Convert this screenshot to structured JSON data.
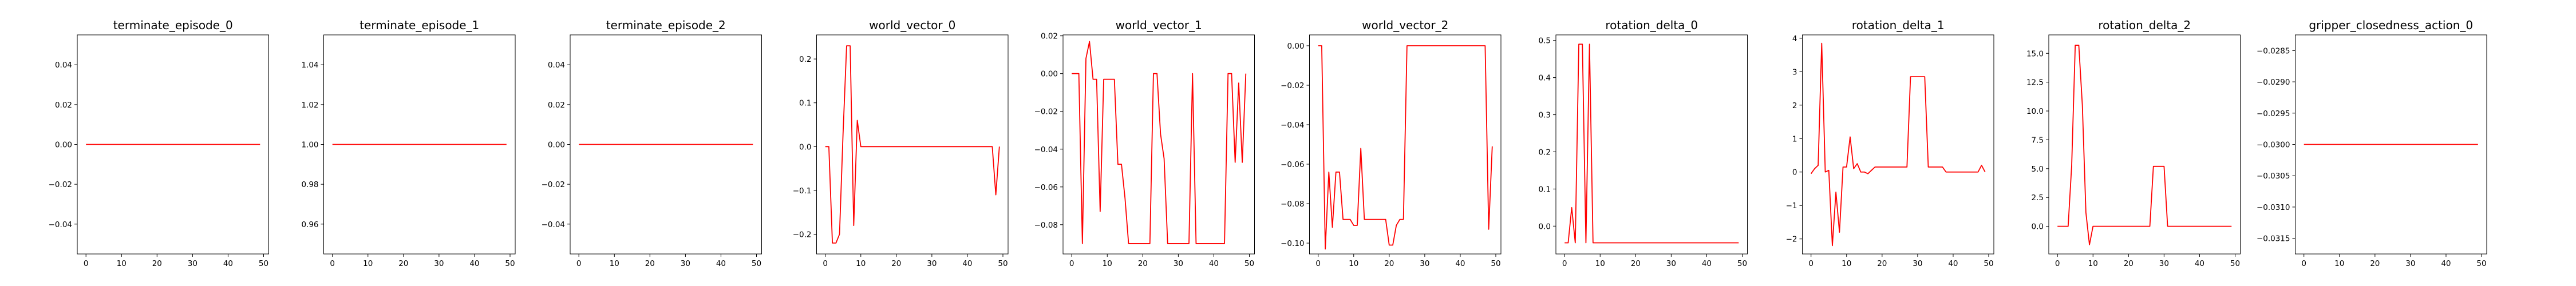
{
  "line_color": "#ff0000",
  "chart_data": [
    {
      "type": "line",
      "title": "terminate_episode_0",
      "xlim": [
        -2.45,
        51.45
      ],
      "ylim": [
        -0.055,
        0.055
      ],
      "xticks": [
        0,
        10,
        20,
        30,
        40,
        50
      ],
      "yticks": [
        -0.04,
        -0.02,
        0.0,
        0.02,
        0.04
      ],
      "ytick_labels": [
        "−0.04",
        "−0.02",
        "0.00",
        "0.02",
        "0.04"
      ],
      "x": [
        0,
        49
      ],
      "y": [
        0,
        0
      ]
    },
    {
      "type": "line",
      "title": "terminate_episode_1",
      "xlim": [
        -2.45,
        51.45
      ],
      "ylim": [
        0.945,
        1.055
      ],
      "xticks": [
        0,
        10,
        20,
        30,
        40,
        50
      ],
      "yticks": [
        0.96,
        0.98,
        1.0,
        1.02,
        1.04
      ],
      "ytick_labels": [
        "0.96",
        "0.98",
        "1.00",
        "1.02",
        "1.04"
      ],
      "x": [
        0,
        49
      ],
      "y": [
        1,
        1
      ]
    },
    {
      "type": "line",
      "title": "terminate_episode_2",
      "xlim": [
        -2.45,
        51.45
      ],
      "ylim": [
        -0.055,
        0.055
      ],
      "xticks": [
        0,
        10,
        20,
        30,
        40,
        50
      ],
      "yticks": [
        -0.04,
        -0.02,
        0.0,
        0.02,
        0.04
      ],
      "ytick_labels": [
        "−0.04",
        "−0.02",
        "0.00",
        "0.02",
        "0.04"
      ],
      "x": [
        0,
        49
      ],
      "y": [
        0,
        0
      ]
    },
    {
      "type": "line",
      "title": "world_vector_0",
      "xlim": [
        -2.45,
        51.45
      ],
      "ylim": [
        -0.245,
        0.255
      ],
      "xticks": [
        0,
        10,
        20,
        30,
        40,
        50
      ],
      "yticks": [
        -0.2,
        -0.1,
        0.0,
        0.1,
        0.2
      ],
      "ytick_labels": [
        "−0.2",
        "−0.1",
        "0.0",
        "0.1",
        "0.2"
      ],
      "x": [
        0,
        1,
        2,
        3,
        4,
        5,
        6,
        7,
        8,
        9,
        10,
        11,
        12,
        13,
        14,
        15,
        16,
        17,
        18,
        19,
        20,
        21,
        22,
        23,
        24,
        25,
        26,
        27,
        28,
        29,
        30,
        31,
        32,
        33,
        34,
        35,
        36,
        37,
        38,
        39,
        40,
        41,
        42,
        43,
        44,
        45,
        46,
        47,
        48,
        49
      ],
      "y": [
        0,
        0,
        -0.22,
        -0.22,
        -0.2,
        0.03,
        0.23,
        0.23,
        -0.18,
        0.06,
        0,
        0,
        0,
        0,
        0,
        0,
        0,
        0,
        0,
        0,
        0,
        0,
        0,
        0,
        0,
        0,
        0,
        0,
        0,
        0,
        0,
        0,
        0,
        0,
        0,
        0,
        0,
        0,
        0,
        0,
        0,
        0,
        0,
        0,
        0,
        0,
        0,
        0,
        -0.11,
        0
      ]
    },
    {
      "type": "line",
      "title": "world_vector_1",
      "xlim": [
        -2.45,
        51.45
      ],
      "ylim": [
        -0.0955,
        0.0205
      ],
      "xticks": [
        0,
        10,
        20,
        30,
        40,
        50
      ],
      "yticks": [
        -0.08,
        -0.06,
        -0.04,
        -0.02,
        0.0,
        0.02
      ],
      "ytick_labels": [
        "−0.08",
        "−0.06",
        "−0.04",
        "−0.02",
        "0.00",
        "0.02"
      ],
      "x": [
        0,
        1,
        2,
        3,
        4,
        5,
        6,
        7,
        8,
        9,
        10,
        11,
        12,
        13,
        14,
        15,
        16,
        17,
        18,
        19,
        20,
        21,
        22,
        23,
        24,
        25,
        26,
        27,
        28,
        29,
        30,
        31,
        32,
        33,
        34,
        35,
        36,
        37,
        38,
        39,
        40,
        41,
        42,
        43,
        44,
        45,
        46,
        47,
        48,
        49
      ],
      "y": [
        0,
        0,
        0,
        -0.09,
        0.008,
        0.017,
        -0.003,
        -0.003,
        -0.073,
        -0.003,
        -0.003,
        -0.003,
        -0.003,
        -0.048,
        -0.048,
        -0.066,
        -0.09,
        -0.09,
        -0.09,
        -0.09,
        -0.09,
        -0.09,
        -0.09,
        0,
        0,
        -0.032,
        -0.045,
        -0.09,
        -0.09,
        -0.09,
        -0.09,
        -0.09,
        -0.09,
        -0.09,
        0,
        -0.09,
        -0.09,
        -0.09,
        -0.09,
        -0.09,
        -0.09,
        -0.09,
        -0.09,
        -0.09,
        0,
        0,
        -0.047,
        -0.005,
        -0.047,
        0
      ]
    },
    {
      "type": "line",
      "title": "world_vector_2",
      "xlim": [
        -2.45,
        51.45
      ],
      "ylim": [
        -0.1055,
        0.0055
      ],
      "xticks": [
        0,
        10,
        20,
        30,
        40,
        50
      ],
      "yticks": [
        -0.1,
        -0.08,
        -0.06,
        -0.04,
        -0.02,
        0.0
      ],
      "ytick_labels": [
        "−0.10",
        "−0.08",
        "−0.06",
        "−0.04",
        "−0.02",
        "0.00"
      ],
      "x": [
        0,
        1,
        2,
        3,
        4,
        5,
        6,
        7,
        8,
        9,
        10,
        11,
        12,
        13,
        14,
        15,
        16,
        17,
        18,
        19,
        20,
        21,
        22,
        23,
        24,
        25,
        26,
        27,
        28,
        29,
        30,
        31,
        32,
        33,
        34,
        35,
        36,
        37,
        38,
        39,
        40,
        41,
        42,
        43,
        44,
        45,
        46,
        47,
        48,
        49
      ],
      "y": [
        0,
        0,
        -0.103,
        -0.064,
        -0.092,
        -0.064,
        -0.064,
        -0.088,
        -0.088,
        -0.088,
        -0.091,
        -0.091,
        -0.052,
        -0.088,
        -0.088,
        -0.088,
        -0.088,
        -0.088,
        -0.088,
        -0.088,
        -0.101,
        -0.101,
        -0.091,
        -0.088,
        -0.088,
        0,
        0,
        0,
        0,
        0,
        0,
        0,
        0,
        0,
        0,
        0,
        0,
        0,
        0,
        0,
        0,
        0,
        0,
        0,
        0,
        0,
        0,
        0,
        -0.093,
        -0.051
      ]
    },
    {
      "type": "line",
      "title": "rotation_delta_0",
      "xlim": [
        -2.45,
        51.45
      ],
      "ylim": [
        -0.075,
        0.515
      ],
      "xticks": [
        0,
        10,
        20,
        30,
        40,
        50
      ],
      "yticks": [
        0.0,
        0.1,
        0.2,
        0.3,
        0.4,
        0.5
      ],
      "ytick_labels": [
        "0.0",
        "0.1",
        "0.2",
        "0.3",
        "0.4",
        "0.5"
      ],
      "x": [
        0,
        1,
        2,
        3,
        4,
        5,
        6,
        7,
        8,
        9,
        10,
        11,
        12,
        13,
        14,
        15,
        16,
        17,
        18,
        19,
        20,
        21,
        22,
        23,
        24,
        25,
        26,
        27,
        28,
        29,
        30,
        31,
        32,
        33,
        34,
        35,
        36,
        37,
        38,
        39,
        40,
        41,
        42,
        43,
        44,
        45,
        46,
        47,
        48,
        49
      ],
      "y": [
        -0.045,
        -0.045,
        0.05,
        -0.045,
        0.49,
        0.49,
        -0.045,
        0.49,
        -0.045,
        -0.045,
        -0.045,
        -0.045,
        -0.045,
        -0.045,
        -0.045,
        -0.045,
        -0.045,
        -0.045,
        -0.045,
        -0.045,
        -0.045,
        -0.045,
        -0.045,
        -0.045,
        -0.045,
        -0.045,
        -0.045,
        -0.045,
        -0.045,
        -0.045,
        -0.045,
        -0.045,
        -0.045,
        -0.045,
        -0.045,
        -0.045,
        -0.045,
        -0.045,
        -0.045,
        -0.045,
        -0.045,
        -0.045,
        -0.045,
        -0.045,
        -0.045,
        -0.045,
        -0.045,
        -0.045,
        -0.045,
        -0.045
      ]
    },
    {
      "type": "line",
      "title": "rotation_delta_1",
      "xlim": [
        -2.45,
        51.45
      ],
      "ylim": [
        -2.45,
        4.1
      ],
      "xticks": [
        0,
        10,
        20,
        30,
        40,
        50
      ],
      "yticks": [
        -2,
        -1,
        0,
        1,
        2,
        3,
        4
      ],
      "ytick_labels": [
        "−2",
        "−1",
        "0",
        "1",
        "2",
        "3",
        "4"
      ],
      "x": [
        0,
        1,
        2,
        3,
        4,
        5,
        6,
        7,
        8,
        9,
        10,
        11,
        12,
        13,
        14,
        15,
        16,
        17,
        18,
        19,
        20,
        21,
        22,
        23,
        24,
        25,
        26,
        27,
        28,
        29,
        30,
        31,
        32,
        33,
        34,
        35,
        36,
        37,
        38,
        39,
        40,
        41,
        42,
        43,
        44,
        45,
        46,
        47,
        48,
        49
      ],
      "y": [
        -0.05,
        0.1,
        0.2,
        3.85,
        0,
        0.05,
        -2.2,
        -0.6,
        -1.8,
        0.15,
        0.15,
        1.05,
        0.1,
        0.25,
        0,
        0,
        -0.05,
        0.05,
        0.15,
        0.15,
        0.15,
        0.15,
        0.15,
        0.15,
        0.15,
        0.15,
        0.15,
        0.15,
        2.85,
        2.85,
        2.85,
        2.85,
        2.85,
        0.15,
        0.15,
        0.15,
        0.15,
        0.15,
        0,
        0,
        0,
        0,
        0,
        0,
        0,
        0,
        0,
        0,
        0.2,
        0
      ]
    },
    {
      "type": "line",
      "title": "rotation_delta_2",
      "xlim": [
        -2.45,
        51.45
      ],
      "ylim": [
        -2.4,
        16.6
      ],
      "xticks": [
        0,
        10,
        20,
        30,
        40,
        50
      ],
      "yticks": [
        0.0,
        2.5,
        5.0,
        7.5,
        10.0,
        12.5,
        15.0
      ],
      "ytick_labels": [
        "0.0",
        "2.5",
        "5.0",
        "7.5",
        "10.0",
        "12.5",
        "15.0"
      ],
      "x": [
        0,
        1,
        2,
        3,
        4,
        5,
        6,
        7,
        8,
        9,
        10,
        11,
        12,
        13,
        14,
        15,
        16,
        17,
        18,
        19,
        20,
        21,
        22,
        23,
        24,
        25,
        26,
        27,
        28,
        29,
        30,
        31,
        32,
        33,
        34,
        35,
        36,
        37,
        38,
        39,
        40,
        41,
        42,
        43,
        44,
        45,
        46,
        47,
        48,
        49
      ],
      "y": [
        0,
        0,
        0,
        0,
        5.3,
        15.7,
        15.7,
        10.5,
        1.2,
        -1.6,
        0,
        0,
        0,
        0,
        0,
        0,
        0,
        0,
        0,
        0,
        0,
        0,
        0,
        0,
        0,
        0,
        0,
        5.2,
        5.2,
        5.2,
        5.2,
        0,
        0,
        0,
        0,
        0,
        0,
        0,
        0,
        0,
        0,
        0,
        0,
        0,
        0,
        0,
        0,
        0,
        0,
        0
      ]
    },
    {
      "type": "line",
      "title": "gripper_closedness_action_0",
      "xlim": [
        -2.45,
        51.45
      ],
      "ylim": [
        -0.03175,
        -0.02825
      ],
      "xticks": [
        0,
        10,
        20,
        30,
        40,
        50
      ],
      "yticks": [
        -0.0315,
        -0.031,
        -0.0305,
        -0.03,
        -0.0295,
        -0.029,
        -0.0285
      ],
      "ytick_labels": [
        "−0.0315",
        "−0.0310",
        "−0.0305",
        "−0.0300",
        "−0.0295",
        "−0.0290",
        "−0.0285"
      ],
      "x": [
        0,
        49
      ],
      "y": [
        -0.03,
        -0.03
      ]
    }
  ]
}
